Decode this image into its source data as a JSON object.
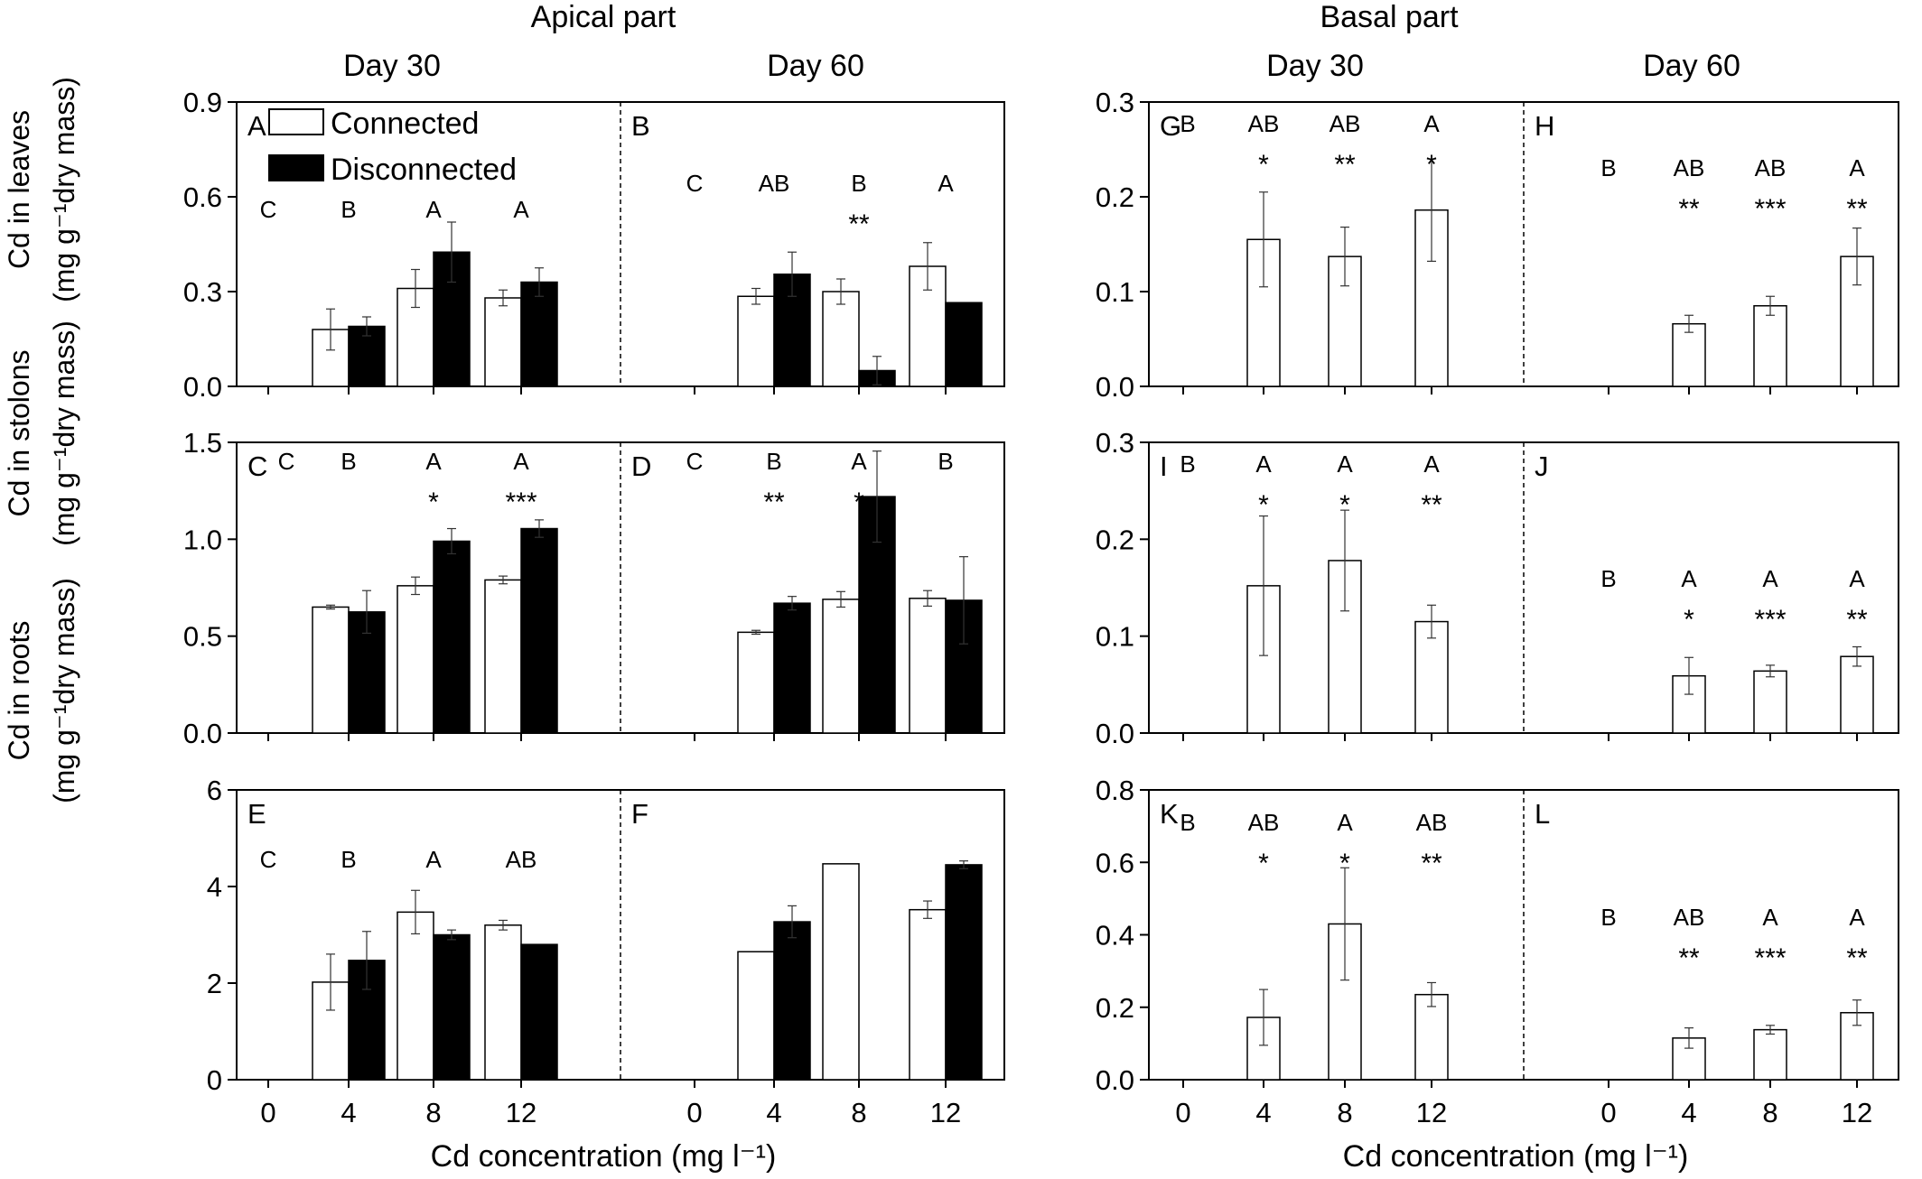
{
  "headers": {
    "apical": "Apical part",
    "basal": "Basal part",
    "day30": "Day 30",
    "day60": "Day 60"
  },
  "y_labels": {
    "leaves": {
      "main": "Cd in leaves",
      "unit": "(mg g⁻¹dry mass)"
    },
    "stolons": {
      "main": "Cd in stolons",
      "unit": "(mg g⁻¹dry mass)"
    },
    "roots": {
      "main": "Cd in roots",
      "unit": "(mg g⁻¹dry mass)"
    }
  },
  "x_label": "Cd concentration (mg l⁻¹)",
  "legend": {
    "connected": "Connected",
    "disconnected": "Disconnected"
  },
  "colors": {
    "connected": "#ffffff",
    "disconnected": "#000000",
    "axis": "#000000"
  },
  "chart_data": [
    {
      "type": "bar",
      "part": "Apical part",
      "row": "leaves",
      "ylim": [
        0,
        0.9
      ],
      "yticks": [
        0.0,
        0.3,
        0.6,
        0.9
      ],
      "ytick_labels": [
        "0.0",
        "0.3",
        "0.6",
        "0.9"
      ],
      "categories": [
        "0",
        "4",
        "8",
        "12"
      ],
      "panels": [
        {
          "letter": "A",
          "day": "Day 30",
          "connected": {
            "values": [
              null,
              0.18,
              0.31,
              0.28
            ],
            "errors": [
              null,
              0.065,
              0.06,
              0.025
            ]
          },
          "disconnected": {
            "values": [
              null,
              0.19,
              0.425,
              0.33
            ],
            "errors": [
              null,
              0.03,
              0.095,
              0.045
            ]
          },
          "letters": [
            "C",
            "B",
            "A",
            "A"
          ],
          "stars": [
            "",
            "",
            "",
            ""
          ]
        },
        {
          "letter": "B",
          "day": "Day 60",
          "connected": {
            "values": [
              null,
              0.285,
              0.3,
              0.38
            ],
            "errors": [
              null,
              0.025,
              0.04,
              0.075
            ]
          },
          "disconnected": {
            "values": [
              null,
              0.355,
              0.05,
              0.265
            ],
            "errors": [
              null,
              0.07,
              0.045,
              0
            ]
          },
          "letters": [
            "C",
            "AB",
            "B",
            "A"
          ],
          "stars": [
            "",
            "",
            "**",
            ""
          ]
        }
      ]
    },
    {
      "type": "bar",
      "part": "Apical part",
      "row": "stolons",
      "ylim": [
        0,
        1.5
      ],
      "yticks": [
        0.0,
        0.5,
        1.0,
        1.5
      ],
      "ytick_labels": [
        "0.0",
        "0.5",
        "1.0",
        "1.5"
      ],
      "categories": [
        "0",
        "4",
        "8",
        "12"
      ],
      "panels": [
        {
          "letter": "C",
          "day": "Day 30",
          "connected": {
            "values": [
              null,
              0.65,
              0.76,
              0.79
            ],
            "errors": [
              null,
              0.01,
              0.045,
              0.02
            ]
          },
          "disconnected": {
            "values": [
              null,
              0.625,
              0.99,
              1.055
            ],
            "errors": [
              null,
              0.11,
              0.065,
              0.045
            ]
          },
          "letters": [
            "C",
            "B",
            "A",
            "A"
          ],
          "stars": [
            "",
            "",
            "*",
            "***"
          ]
        },
        {
          "letter": "D",
          "day": "Day 60",
          "connected": {
            "values": [
              null,
              0.52,
              0.69,
              0.695
            ],
            "errors": [
              null,
              0.01,
              0.04,
              0.04
            ]
          },
          "disconnected": {
            "values": [
              null,
              0.67,
              1.22,
              0.685
            ],
            "errors": [
              null,
              0.035,
              0.235,
              0.225
            ]
          },
          "letters": [
            "C",
            "B",
            "A",
            "B"
          ],
          "stars": [
            "",
            "**",
            "*",
            ""
          ]
        }
      ]
    },
    {
      "type": "bar",
      "part": "Apical part",
      "row": "roots",
      "ylim": [
        0,
        6
      ],
      "yticks": [
        0,
        2,
        4,
        6
      ],
      "ytick_labels": [
        "0",
        "2",
        "4",
        "6"
      ],
      "categories": [
        "0",
        "4",
        "8",
        "12"
      ],
      "panels": [
        {
          "letter": "E",
          "day": "Day 30",
          "connected": {
            "values": [
              null,
              2.02,
              3.47,
              3.2
            ],
            "errors": [
              null,
              0.58,
              0.45,
              0.1
            ]
          },
          "disconnected": {
            "values": [
              null,
              2.47,
              3.0,
              2.8
            ],
            "errors": [
              null,
              0.6,
              0.1,
              0
            ]
          },
          "letters": [
            "C",
            "B",
            "A",
            "AB"
          ],
          "stars": [
            "",
            "",
            "",
            ""
          ]
        },
        {
          "letter": "F",
          "day": "Day 60",
          "connected": {
            "values": [
              null,
              2.65,
              4.47,
              3.52
            ],
            "errors": [
              null,
              0,
              0,
              0.18
            ]
          },
          "disconnected": {
            "values": [
              null,
              3.27,
              null,
              4.45
            ],
            "errors": [
              null,
              0.33,
              0,
              0.08
            ]
          },
          "letters": [
            "",
            "",
            "",
            ""
          ],
          "stars": [
            "",
            "",
            "",
            ""
          ]
        }
      ]
    },
    {
      "type": "bar",
      "part": "Basal part",
      "row": "leaves",
      "ylim": [
        0,
        0.3
      ],
      "yticks": [
        0.0,
        0.1,
        0.2,
        0.3
      ],
      "ytick_labels": [
        "0.0",
        "0.1",
        "0.2",
        "0.3"
      ],
      "categories": [
        "0",
        "4",
        "8",
        "12"
      ],
      "panels": [
        {
          "letter": "G",
          "day": "Day 30",
          "connected": {
            "values": [
              null,
              0.155,
              0.137,
              0.186
            ],
            "errors": [
              null,
              0.05,
              0.031,
              0.054
            ]
          },
          "letters": [
            "B",
            "AB",
            "AB",
            "A"
          ],
          "stars": [
            "",
            "*",
            "**",
            "*"
          ]
        },
        {
          "letter": "H",
          "day": "Day 60",
          "connected": {
            "values": [
              null,
              0.066,
              0.085,
              0.137
            ],
            "errors": [
              null,
              0.009,
              0.01,
              0.03
            ]
          },
          "letters": [
            "B",
            "AB",
            "AB",
            "A"
          ],
          "stars": [
            "",
            "**",
            "***",
            "**"
          ]
        }
      ]
    },
    {
      "type": "bar",
      "part": "Basal part",
      "row": "stolons",
      "ylim": [
        0,
        0.3
      ],
      "yticks": [
        0.0,
        0.1,
        0.2,
        0.3
      ],
      "ytick_labels": [
        "0.0",
        "0.1",
        "0.2",
        "0.3"
      ],
      "categories": [
        "0",
        "4",
        "8",
        "12"
      ],
      "panels": [
        {
          "letter": "I",
          "day": "Day 30",
          "connected": {
            "values": [
              null,
              0.152,
              0.178,
              0.115
            ],
            "errors": [
              null,
              0.072,
              0.052,
              0.017
            ]
          },
          "letters": [
            "B",
            "A",
            "A",
            "A"
          ],
          "stars": [
            "",
            "*",
            "*",
            "**"
          ]
        },
        {
          "letter": "J",
          "day": "Day 60",
          "connected": {
            "values": [
              null,
              0.059,
              0.064,
              0.079
            ],
            "errors": [
              null,
              0.019,
              0.006,
              0.01
            ]
          },
          "letters": [
            "B",
            "A",
            "A",
            "A"
          ],
          "stars": [
            "",
            "*",
            "***",
            "**"
          ]
        }
      ]
    },
    {
      "type": "bar",
      "part": "Basal part",
      "row": "roots",
      "ylim": [
        0,
        0.8
      ],
      "yticks": [
        0.0,
        0.2,
        0.4,
        0.6,
        0.8
      ],
      "ytick_labels": [
        "0.0",
        "0.2",
        "0.4",
        "0.6",
        "0.8"
      ],
      "categories": [
        "0",
        "4",
        "8",
        "12"
      ],
      "panels": [
        {
          "letter": "K",
          "day": "Day 30",
          "connected": {
            "values": [
              null,
              0.172,
              0.43,
              0.235
            ],
            "errors": [
              null,
              0.077,
              0.155,
              0.033
            ]
          },
          "letters": [
            "B",
            "AB",
            "A",
            "AB"
          ],
          "stars": [
            "",
            "*",
            "*",
            "**"
          ]
        },
        {
          "letter": "L",
          "day": "Day 60",
          "connected": {
            "values": [
              null,
              0.115,
              0.138,
              0.185
            ],
            "errors": [
              null,
              0.028,
              0.012,
              0.035
            ]
          },
          "letters": [
            "B",
            "AB",
            "A",
            "A"
          ],
          "stars": [
            "",
            "**",
            "***",
            "**"
          ]
        }
      ]
    }
  ]
}
